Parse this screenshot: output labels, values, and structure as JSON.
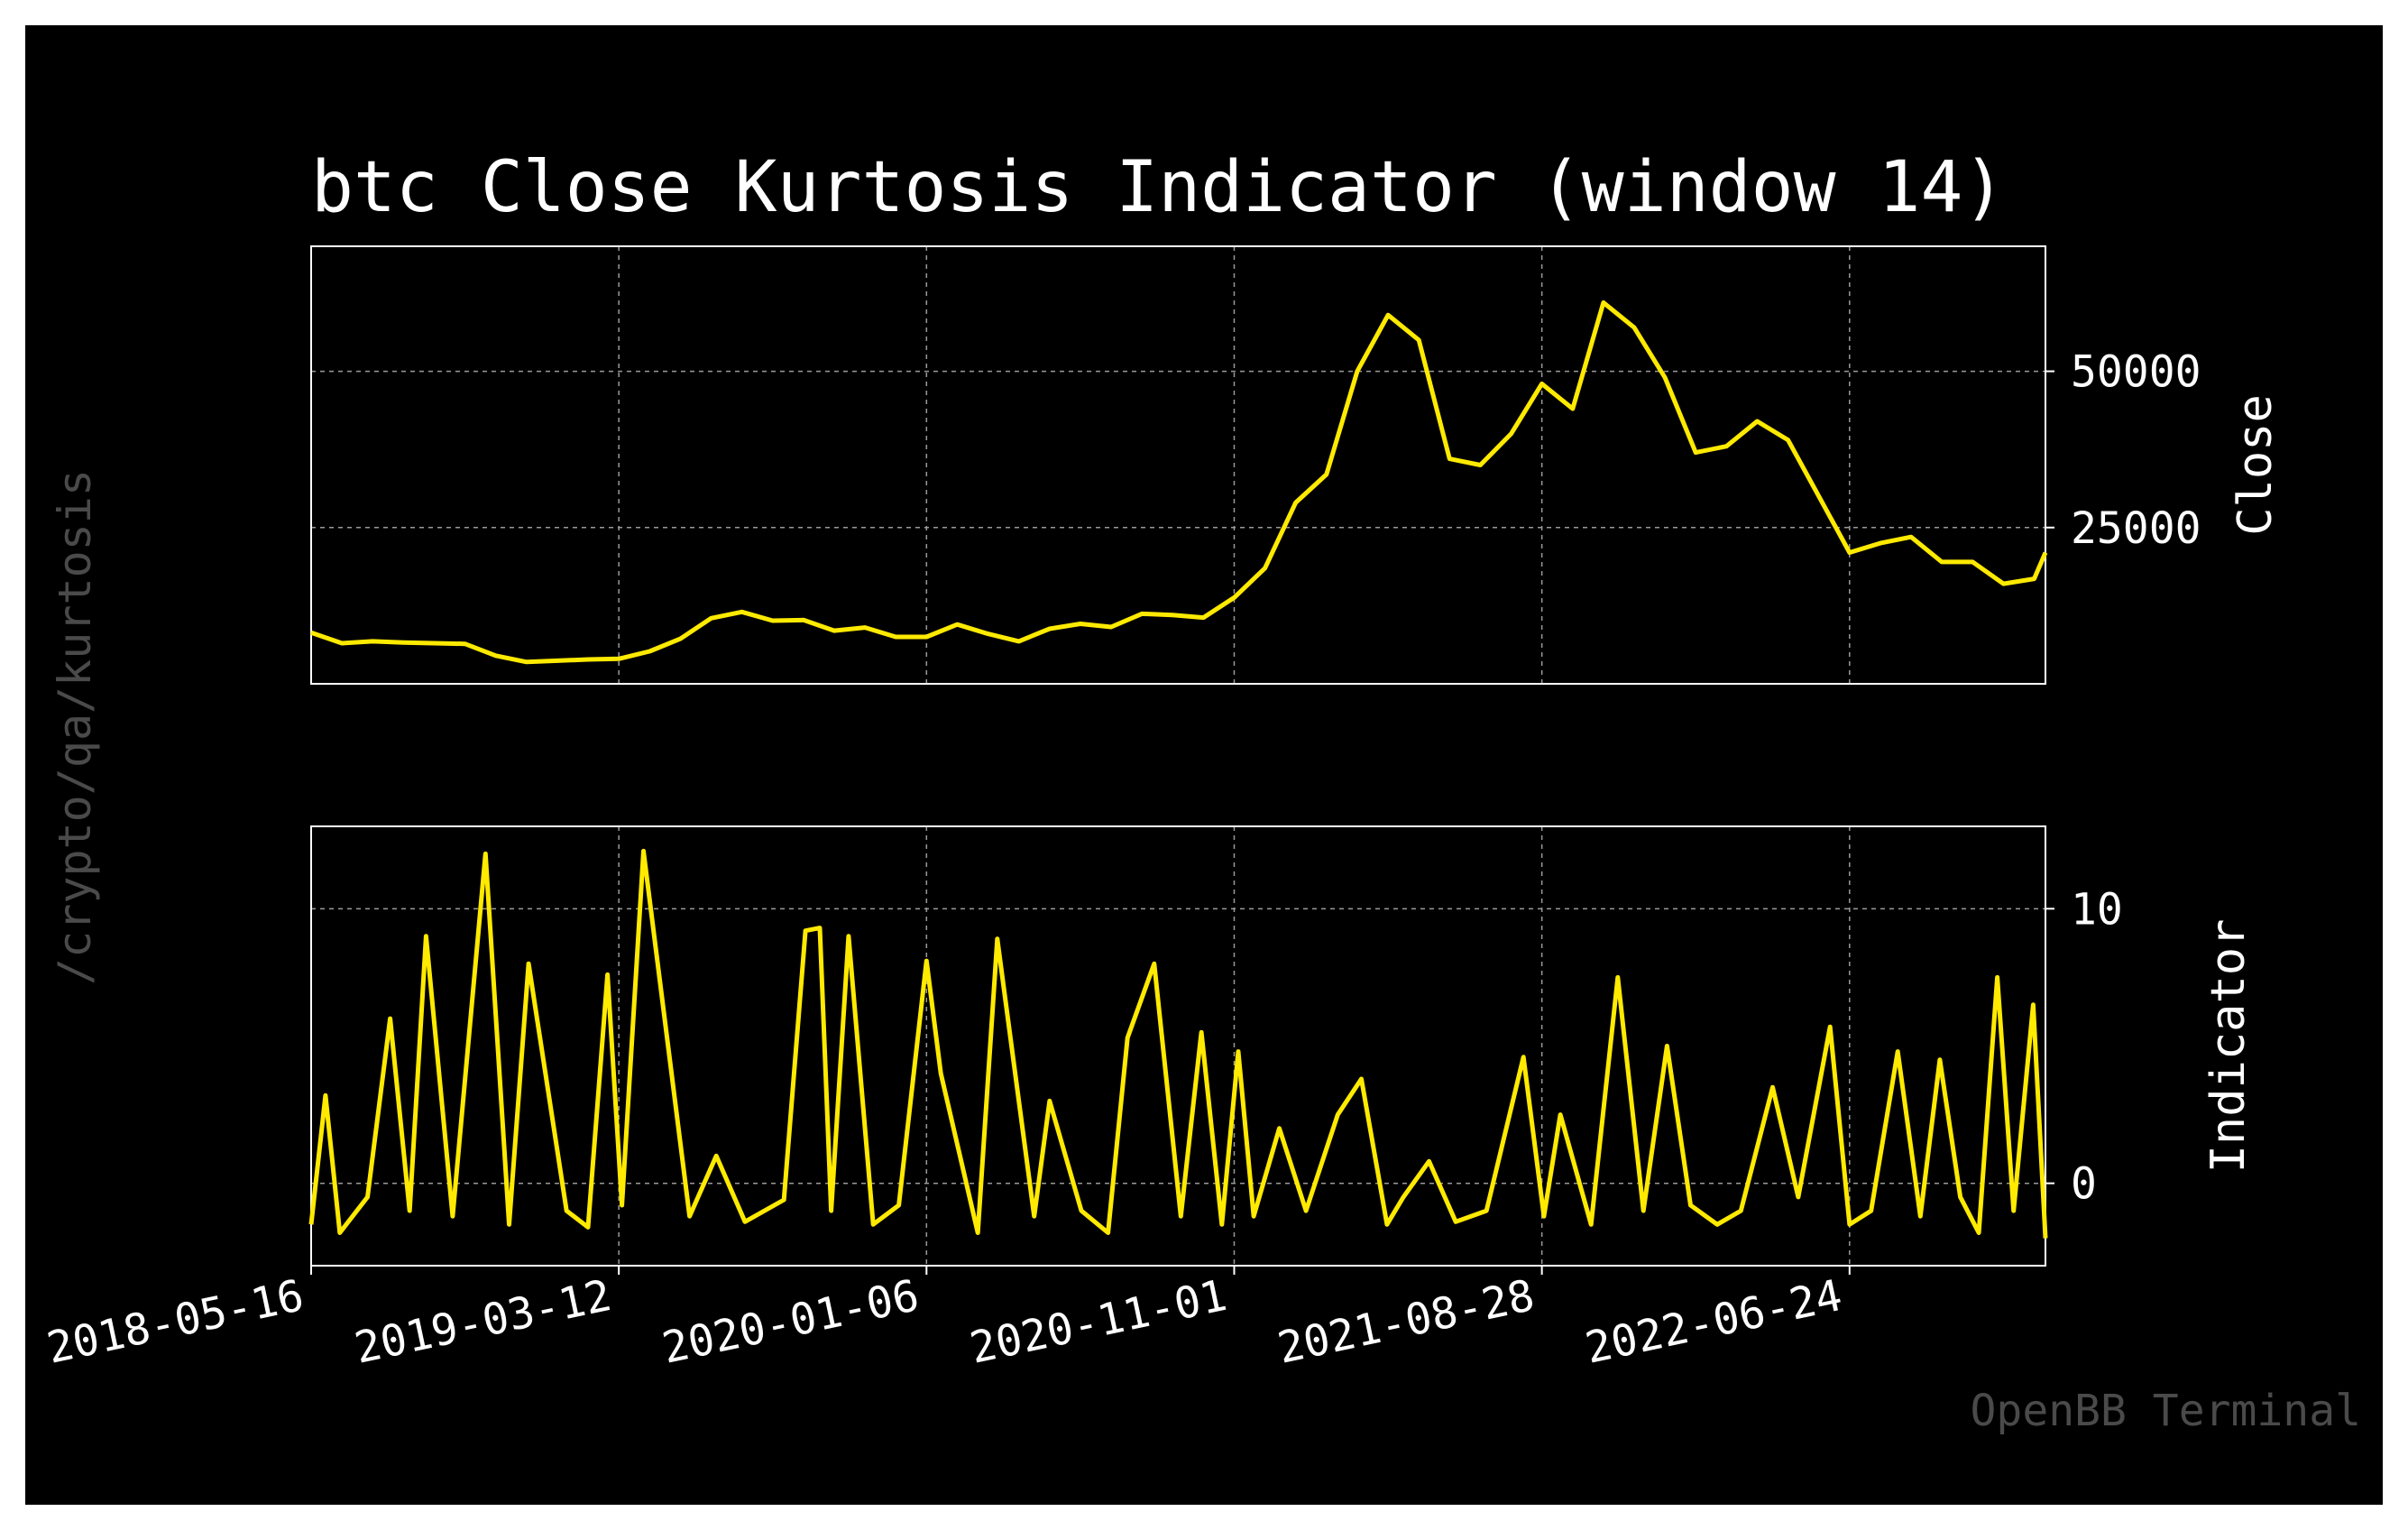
{
  "chart_data": {
    "type": "line",
    "title": "btc Close Kurtosis Indicator (window 14)",
    "side_label": "/crypto/qa/kurtosis",
    "watermark": "OpenBB Terminal",
    "x_tick_labels": [
      "2018-05-16",
      "2019-03-12",
      "2020-01-06",
      "2020-11-01",
      "2021-08-28",
      "2022-06-24"
    ],
    "x_range": [
      "2018-05-16",
      "2023-01-01"
    ],
    "grid": true,
    "colors": {
      "background": "#000000",
      "line": "#ffea00",
      "text": "#ffffff",
      "grid": "#9a9a9a",
      "muted": "#4a4a4a"
    },
    "panels": [
      {
        "ylabel": "Close",
        "ylim": [
          0,
          70000
        ],
        "yticks": [
          25000,
          50000
        ],
        "series": [
          {
            "x": [
              "2018-05-16",
              "2018-06-15",
              "2018-07-15",
              "2018-08-14",
              "2018-09-13",
              "2018-10-13",
              "2018-11-12",
              "2018-12-12",
              "2019-01-11",
              "2019-02-10",
              "2019-03-12",
              "2019-04-11",
              "2019-05-11",
              "2019-06-10",
              "2019-07-10",
              "2019-08-09",
              "2019-09-08",
              "2019-10-08",
              "2019-11-07",
              "2019-12-07",
              "2020-01-06",
              "2020-02-05",
              "2020-03-06",
              "2020-04-05",
              "2020-05-05",
              "2020-06-04",
              "2020-07-04",
              "2020-08-03",
              "2020-09-02",
              "2020-10-02",
              "2020-11-01",
              "2020-12-01",
              "2020-12-31",
              "2021-01-30",
              "2021-03-01",
              "2021-03-31",
              "2021-04-30",
              "2021-05-30",
              "2021-06-29",
              "2021-07-29",
              "2021-08-28",
              "2021-09-27",
              "2021-10-27",
              "2021-11-26",
              "2021-12-26",
              "2022-01-25",
              "2022-02-24",
              "2022-03-26",
              "2022-04-25",
              "2022-05-25",
              "2022-06-24",
              "2022-07-24",
              "2022-08-23",
              "2022-09-22",
              "2022-10-22",
              "2022-11-21",
              "2022-12-21",
              "2023-01-01"
            ],
            "values": [
              8200,
              6500,
              6800,
              6600,
              6500,
              6400,
              4500,
              3500,
              3700,
              3900,
              4000,
              5200,
              7200,
              10500,
              11500,
              10100,
              10200,
              8500,
              9000,
              7500,
              7500,
              9500,
              8000,
              6800,
              8800,
              9600,
              9100,
              11200,
              11000,
              10600,
              13800,
              18500,
              29000,
              33500,
              50000,
              59000,
              55000,
              36000,
              35000,
              40000,
              48000,
              44000,
              61000,
              57000,
              49000,
              37000,
              38000,
              42000,
              39000,
              30000,
              21000,
              22500,
              23500,
              19500,
              19500,
              16000,
              16800,
              21000
            ]
          }
        ]
      },
      {
        "ylabel": "Indicator",
        "ylim": [
          -3,
          13
        ],
        "yticks": [
          0,
          10
        ],
        "series": [
          {
            "x": [
              "2018-05-16",
              "2018-05-30",
              "2018-06-13",
              "2018-07-10",
              "2018-08-01",
              "2018-08-20",
              "2018-09-05",
              "2018-10-01",
              "2018-11-02",
              "2018-11-25",
              "2018-12-14",
              "2019-01-20",
              "2019-02-10",
              "2019-03-01",
              "2019-03-15",
              "2019-04-05",
              "2019-05-20",
              "2019-06-15",
              "2019-07-13",
              "2019-08-20",
              "2019-09-10",
              "2019-09-24",
              "2019-10-05",
              "2019-10-22",
              "2019-11-15",
              "2019-12-10",
              "2020-01-06",
              "2020-01-20",
              "2020-02-25",
              "2020-03-15",
              "2020-04-20",
              "2020-05-05",
              "2020-06-05",
              "2020-07-01",
              "2020-07-20",
              "2020-08-15",
              "2020-09-10",
              "2020-09-30",
              "2020-10-20",
              "2020-11-05",
              "2020-11-20",
              "2020-12-15",
              "2021-01-10",
              "2021-02-10",
              "2021-03-05",
              "2021-03-30",
              "2021-04-15",
              "2021-05-10",
              "2021-06-05",
              "2021-07-05",
              "2021-08-10",
              "2021-08-30",
              "2021-09-15",
              "2021-10-15",
              "2021-11-10",
              "2021-12-05",
              "2021-12-28",
              "2022-01-20",
              "2022-02-15",
              "2022-03-10",
              "2022-04-10",
              "2022-05-05",
              "2022-06-05",
              "2022-06-24",
              "2022-07-15",
              "2022-08-10",
              "2022-09-01",
              "2022-09-20",
              "2022-10-10",
              "2022-10-28",
              "2022-11-15",
              "2022-12-01",
              "2022-12-20",
              "2023-01-01"
            ],
            "values": [
              -1.5,
              3.2,
              -1.8,
              -0.5,
              6.0,
              -1.0,
              9.0,
              -1.2,
              12.0,
              -1.5,
              8.0,
              -1.0,
              -1.6,
              7.6,
              -0.8,
              12.1,
              -1.2,
              1.0,
              -1.4,
              -0.6,
              9.2,
              9.3,
              -1.0,
              9.0,
              -1.5,
              -0.8,
              8.1,
              4.0,
              -1.8,
              8.9,
              -1.2,
              3.0,
              -1.0,
              -1.8,
              5.3,
              8.0,
              -1.2,
              5.5,
              -1.5,
              4.8,
              -1.2,
              2.0,
              -1.0,
              2.5,
              3.8,
              -1.5,
              -0.5,
              0.8,
              -1.4,
              -1.0,
              4.6,
              -1.2,
              2.5,
              -1.5,
              7.5,
              -1.0,
              5.0,
              -0.8,
              -1.5,
              -1.0,
              3.5,
              -0.5,
              5.7,
              -1.5,
              -1.0,
              4.8,
              -1.2,
              4.5,
              -0.5,
              -1.8,
              7.5,
              -1.0,
              6.5,
              -2.0
            ]
          }
        ]
      }
    ]
  }
}
